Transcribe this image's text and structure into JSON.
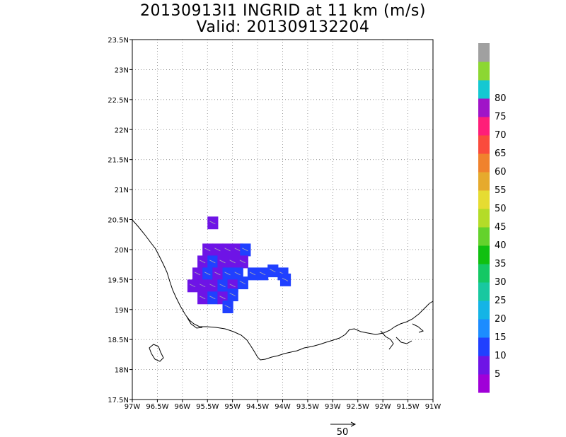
{
  "title": {
    "line1": "20130913I1 INGRID at 11 km (m/s)",
    "line2": "Valid: 201309132204"
  },
  "map": {
    "lat_labels": [
      "23.5N",
      "23N",
      "22.5N",
      "22N",
      "21.5N",
      "21N",
      "20.5N",
      "20N",
      "19.5N",
      "19N",
      "18.5N",
      "18N",
      "17.5N"
    ],
    "lon_labels": [
      "97W",
      "96.5W",
      "96W",
      "95.5W",
      "95W",
      "94.5W",
      "94W",
      "93.5W",
      "93W",
      "92.5W",
      "92W",
      "91.5W",
      "91W"
    ],
    "extent": {
      "lon": [
        -97,
        -91
      ],
      "lat": [
        17.5,
        23.5
      ]
    },
    "grid": "dotted"
  },
  "colorbar": {
    "labels": [
      "5",
      "10",
      "15",
      "20",
      "25",
      "30",
      "35",
      "40",
      "45",
      "50",
      "55",
      "60",
      "65",
      "70",
      "75",
      "80"
    ],
    "colors": [
      "#a000d8",
      "#6e14e6",
      "#2040ff",
      "#1c8cff",
      "#14b4e6",
      "#18c8a0",
      "#14c864",
      "#10c010",
      "#64d22c",
      "#b4dc28",
      "#e6dc32",
      "#e6aa2d",
      "#f0822d",
      "#fa4b3c",
      "#ff1e78",
      "#a014c8",
      "#14c8d2",
      "#8cd732",
      "#a0a0a0"
    ]
  },
  "wind_legend": {
    "label": "50"
  },
  "chart_data": {
    "type": "heatmap",
    "title": "20130913I1 INGRID at 11 km (m/s)",
    "subtitle": "Valid: 201309132204",
    "xlim": [
      -97,
      -91
    ],
    "ylim": [
      17.5,
      23.5
    ],
    "cells": [
      {
        "lon": -95.4,
        "lat": 20.45,
        "value": 5
      },
      {
        "lon": -95.5,
        "lat": 20.0,
        "value": 5
      },
      {
        "lon": -95.3,
        "lat": 20.0,
        "value": 5
      },
      {
        "lon": -95.1,
        "lat": 20.0,
        "value": 5
      },
      {
        "lon": -94.9,
        "lat": 20.0,
        "value": 8
      },
      {
        "lon": -94.75,
        "lat": 20.0,
        "value": 10
      },
      {
        "lon": -95.6,
        "lat": 19.8,
        "value": 5
      },
      {
        "lon": -95.4,
        "lat": 19.8,
        "value": 12
      },
      {
        "lon": -95.2,
        "lat": 19.8,
        "value": 5
      },
      {
        "lon": -95.0,
        "lat": 19.8,
        "value": 5
      },
      {
        "lon": -94.8,
        "lat": 19.8,
        "value": 5
      },
      {
        "lon": -95.7,
        "lat": 19.6,
        "value": 5
      },
      {
        "lon": -95.5,
        "lat": 19.6,
        "value": 13
      },
      {
        "lon": -95.3,
        "lat": 19.6,
        "value": 5
      },
      {
        "lon": -95.1,
        "lat": 19.6,
        "value": 12
      },
      {
        "lon": -94.9,
        "lat": 19.6,
        "value": 12
      },
      {
        "lon": -94.6,
        "lat": 19.6,
        "value": 10
      },
      {
        "lon": -94.4,
        "lat": 19.6,
        "value": 10
      },
      {
        "lon": -94.2,
        "lat": 19.65,
        "value": 12
      },
      {
        "lon": -94.0,
        "lat": 19.6,
        "value": 10
      },
      {
        "lon": -95.8,
        "lat": 19.4,
        "value": 5
      },
      {
        "lon": -95.6,
        "lat": 19.4,
        "value": 5
      },
      {
        "lon": -95.4,
        "lat": 19.4,
        "value": 5
      },
      {
        "lon": -95.2,
        "lat": 19.4,
        "value": 13
      },
      {
        "lon": -95.0,
        "lat": 19.4,
        "value": 5
      },
      {
        "lon": -94.8,
        "lat": 19.45,
        "value": 12
      },
      {
        "lon": -93.95,
        "lat": 19.5,
        "value": 12
      },
      {
        "lon": -95.6,
        "lat": 19.2,
        "value": 5
      },
      {
        "lon": -95.4,
        "lat": 19.2,
        "value": 12
      },
      {
        "lon": -95.2,
        "lat": 19.2,
        "value": 5
      },
      {
        "lon": -95.0,
        "lat": 19.25,
        "value": 10
      },
      {
        "lon": -95.1,
        "lat": 19.05,
        "value": 10
      }
    ]
  }
}
